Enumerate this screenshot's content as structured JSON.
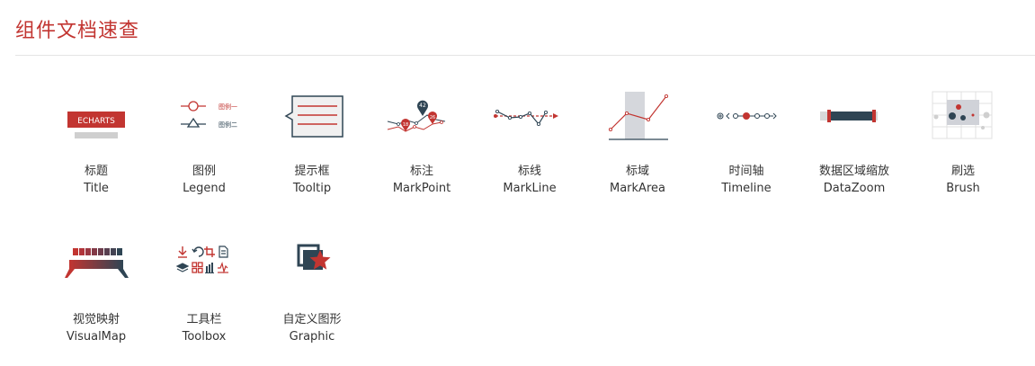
{
  "page": {
    "title": "组件文档速查"
  },
  "colors": {
    "accent": "#c23531",
    "dark": "#2f4554",
    "gray": "#d0d0d0"
  },
  "items": [
    {
      "cn": "标题",
      "en": "Title",
      "icon": "title-icon",
      "chart_text": "ECHARTS"
    },
    {
      "cn": "图例",
      "en": "Legend",
      "icon": "legend-icon",
      "legend_a": "图例一",
      "legend_b": "图例二"
    },
    {
      "cn": "提示框",
      "en": "Tooltip",
      "icon": "tooltip-icon"
    },
    {
      "cn": "标注",
      "en": "MarkPoint",
      "icon": "markpoint-icon",
      "pins": [
        "42",
        "18",
        "26"
      ]
    },
    {
      "cn": "标线",
      "en": "MarkLine",
      "icon": "markline-icon"
    },
    {
      "cn": "标域",
      "en": "MarkArea",
      "icon": "markarea-icon"
    },
    {
      "cn": "时间轴",
      "en": "Timeline",
      "icon": "timeline-icon"
    },
    {
      "cn": "数据区域缩放",
      "en": "DataZoom",
      "icon": "datazoom-icon"
    },
    {
      "cn": "刷选",
      "en": "Brush",
      "icon": "brush-icon"
    },
    {
      "cn": "视觉映射",
      "en": "VisualMap",
      "icon": "visualmap-icon"
    },
    {
      "cn": "工具栏",
      "en": "Toolbox",
      "icon": "toolbox-icon"
    },
    {
      "cn": "自定义图形",
      "en": "Graphic",
      "icon": "graphic-icon"
    }
  ]
}
